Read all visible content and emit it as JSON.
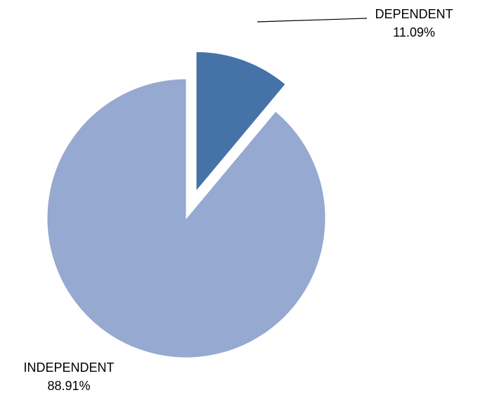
{
  "chart_data": {
    "type": "pie",
    "title": "",
    "exploded_slice": "DEPENDENT",
    "slices": [
      {
        "label": "DEPENDENT",
        "value": 11.09,
        "value_text": "11.09%",
        "color": "#4572a7"
      },
      {
        "label": "INDEPENDENT",
        "value": 88.91,
        "value_text": "88.91%",
        "color": "#95a9d1"
      }
    ],
    "legend": "none"
  }
}
